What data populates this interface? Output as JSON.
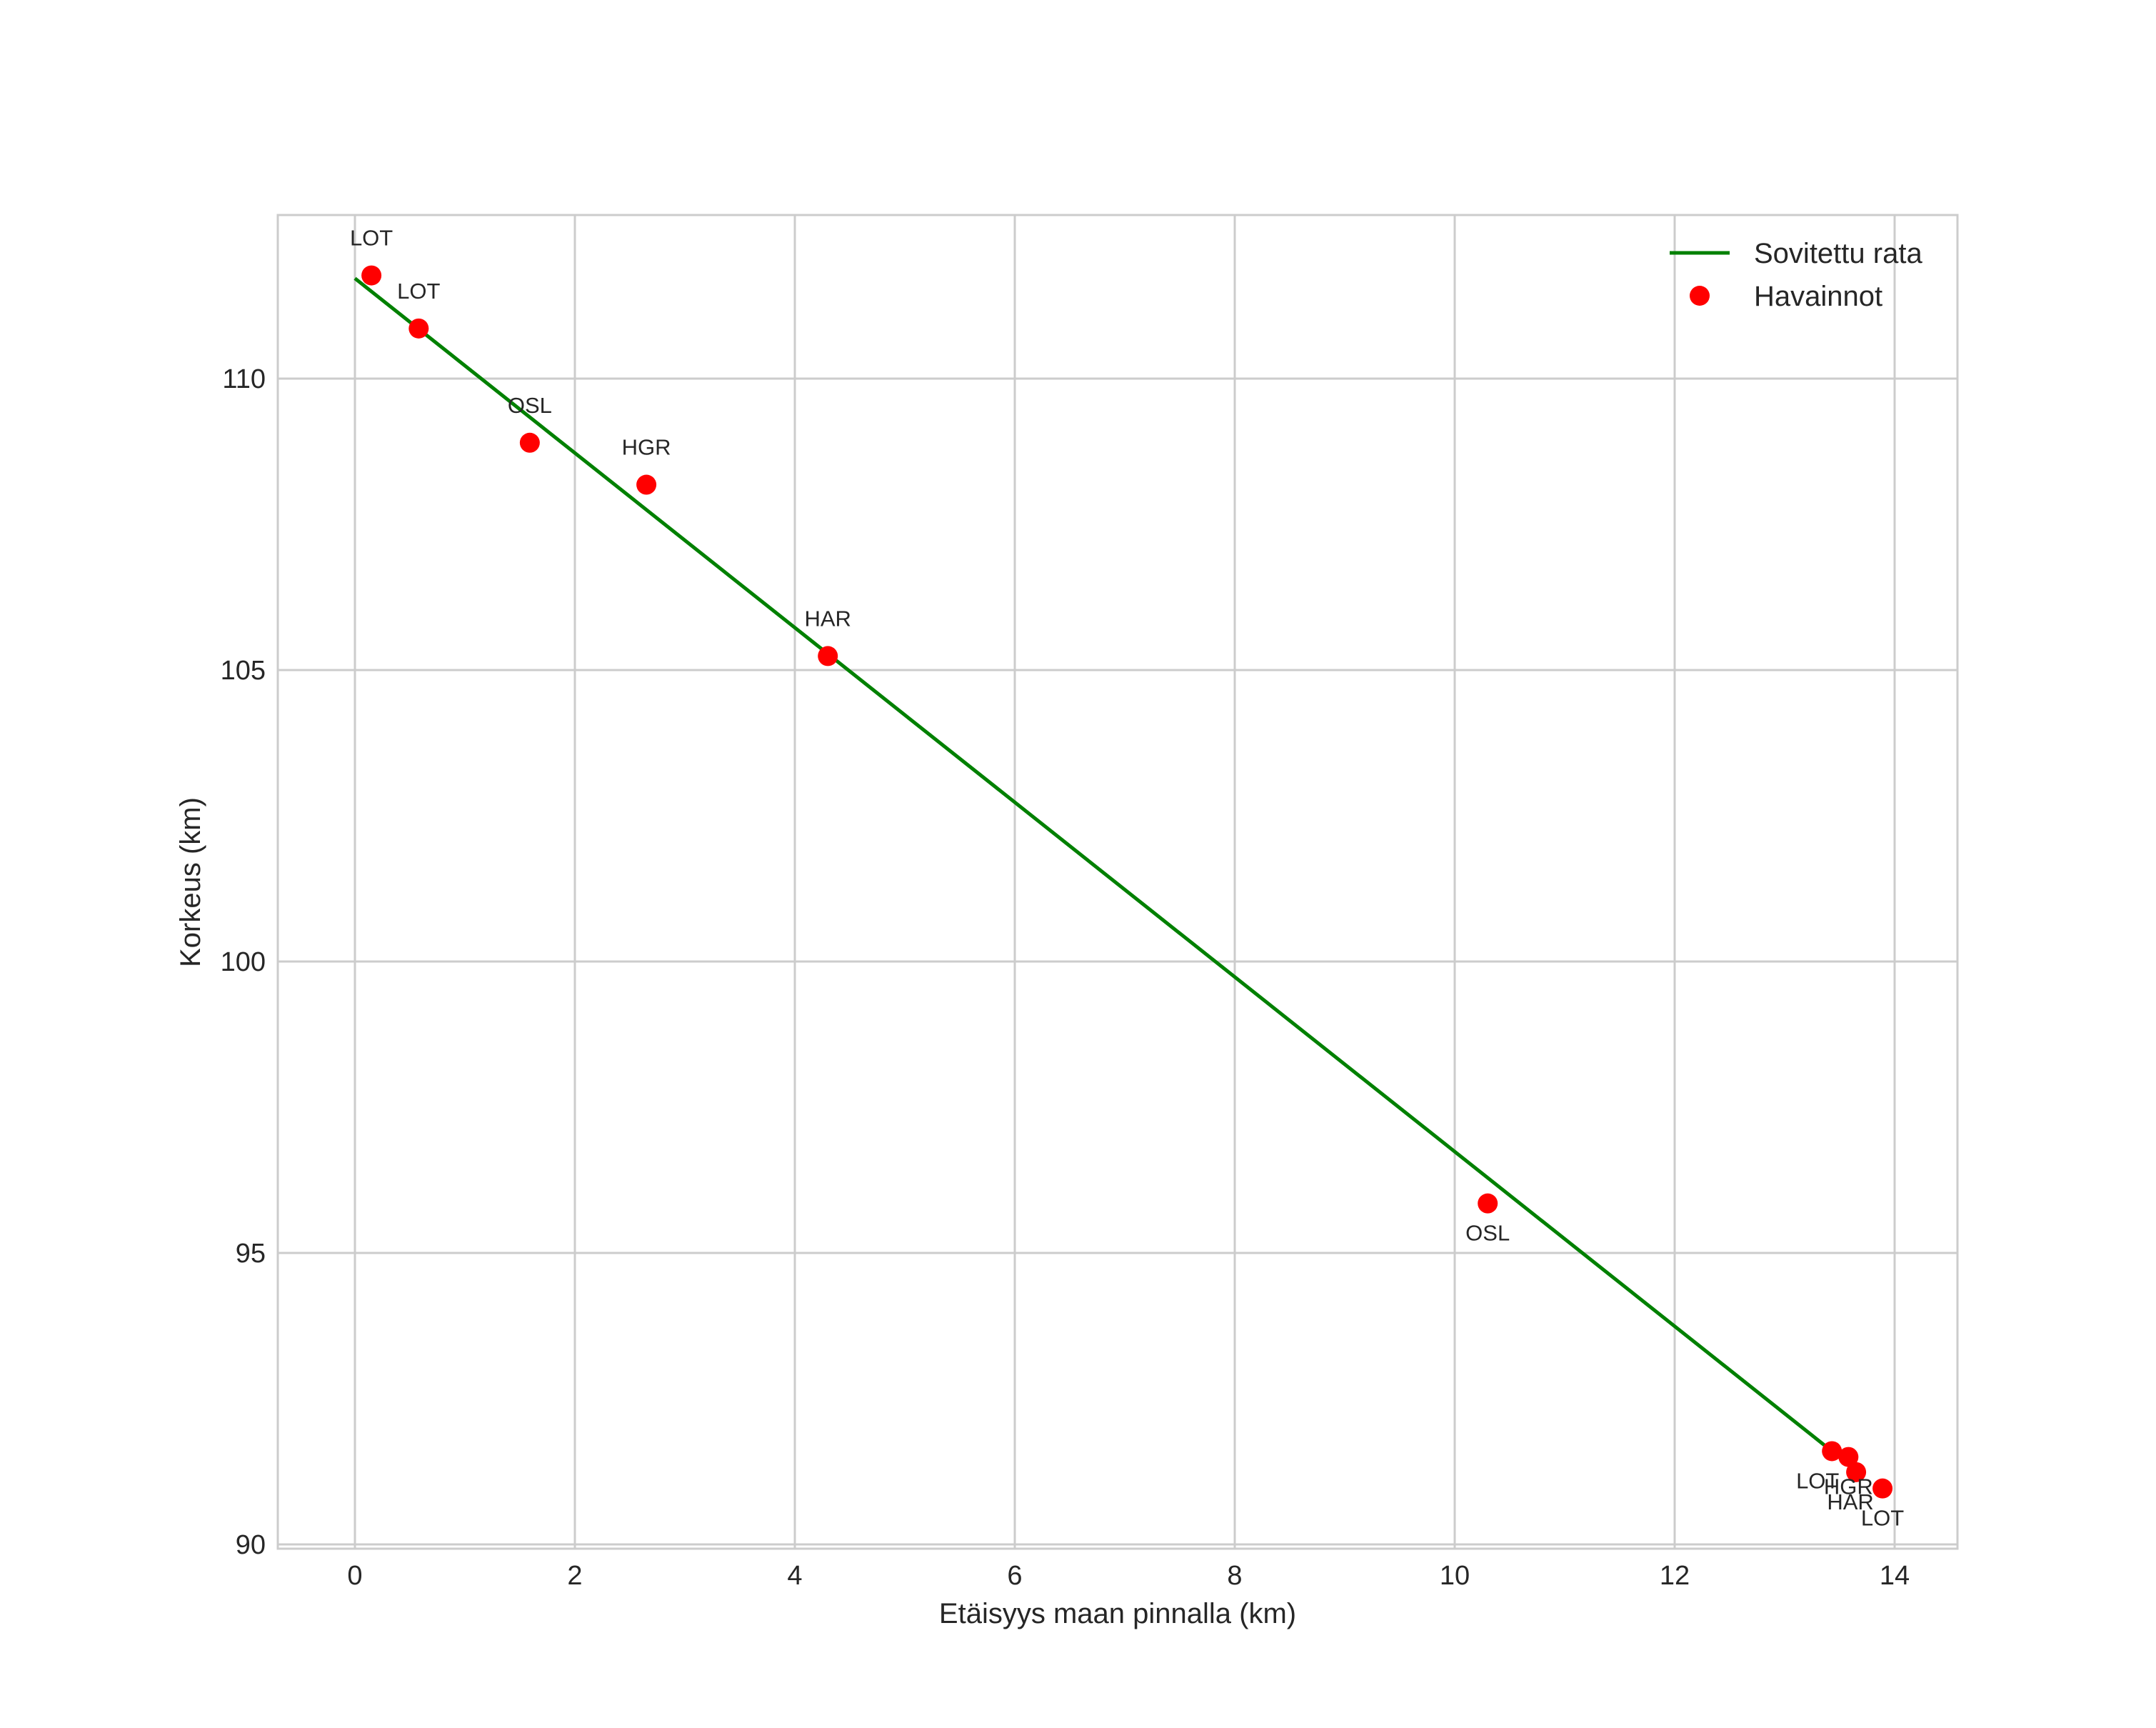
{
  "chart_data": {
    "type": "scatter",
    "title": "",
    "xlabel": "Etäisyys maan pinnalla (km)",
    "ylabel": "Korkeus (km)",
    "xlim": [
      -0.7,
      14.6
    ],
    "ylim": [
      89.9,
      112.8
    ],
    "xticks": [
      0,
      2,
      4,
      6,
      8,
      10,
      12,
      14
    ],
    "yticks": [
      90,
      95,
      100,
      105,
      110
    ],
    "grid": true,
    "legend_position": "upper right",
    "series": [
      {
        "name": "Sovitettu rata",
        "kind": "line",
        "color": "#008000",
        "x": [
          0.0,
          13.43
        ],
        "y": [
          111.72,
          91.6
        ]
      },
      {
        "name": "Havainnot",
        "kind": "scatter",
        "color": "#ff0000",
        "points": [
          {
            "x": 0.15,
            "y": 111.77,
            "label": "LOT"
          },
          {
            "x": 0.58,
            "y": 110.86,
            "label": "LOT"
          },
          {
            "x": 1.59,
            "y": 108.9,
            "label": "OSL"
          },
          {
            "x": 2.65,
            "y": 108.18,
            "label": "HGR"
          },
          {
            "x": 4.3,
            "y": 105.24,
            "label": "HAR"
          },
          {
            "x": 10.3,
            "y": 95.85,
            "label": "OSL"
          },
          {
            "x": 13.43,
            "y": 91.6,
            "label": "LOT"
          },
          {
            "x": 13.58,
            "y": 91.5,
            "label": "HGR"
          },
          {
            "x": 13.65,
            "y": 91.24,
            "label": "HAR"
          },
          {
            "x": 13.89,
            "y": 90.96,
            "label": "LOT"
          }
        ]
      }
    ]
  },
  "labels": {
    "xlabel": "Etäisyys maan pinnalla (km)",
    "ylabel": "Korkeus (km)",
    "legend_line": "Sovitettu rata",
    "legend_points": "Havainnot"
  }
}
